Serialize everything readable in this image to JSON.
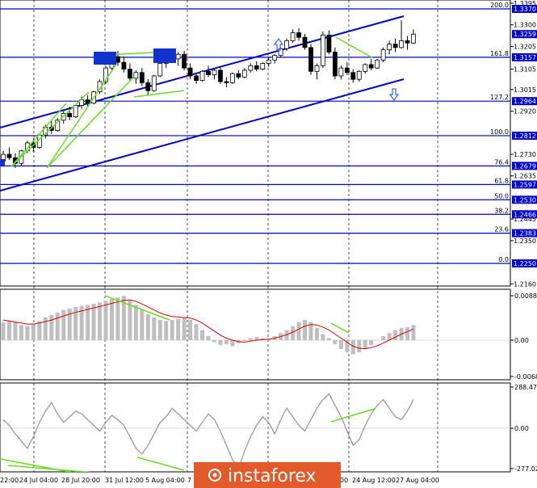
{
  "chart_data": {
    "type": "candlestick",
    "title": "",
    "x_labels": [
      "22:00",
      "24 Jul 04:00",
      "28 Jul 20:00",
      "31 Jul 12:00",
      "5 Aug 04:00",
      "7 A",
      "20:00",
      "24 Aug 12:00",
      "27 Aug 04:00"
    ],
    "y_ticks": [
      "1.3395",
      "1.3300",
      "1.3205",
      "1.3105",
      "1.3015",
      "1.2920",
      "1.2730",
      "1.2635",
      "1.2445",
      "1.2350",
      "1.2160"
    ],
    "price_markers": [
      {
        "fib": "200.0",
        "price": "1.3370"
      },
      {
        "fib": "",
        "price": "1.3259"
      },
      {
        "fib": "161.8",
        "price": "1.3157"
      },
      {
        "fib": "127.2",
        "price": "1.2964"
      },
      {
        "fib": "100.0",
        "price": "1.2812"
      },
      {
        "fib": "76.4",
        "price": "1.2679"
      },
      {
        "fib": "61.8",
        "price": "1.2597"
      },
      {
        "fib": "50.0",
        "price": "1.2530"
      },
      {
        "fib": "38.2",
        "price": "1.2466"
      },
      {
        "fib": "23.6",
        "price": "1.2383"
      },
      {
        "fib": "0.0",
        "price": "1.2250"
      }
    ],
    "candles": [
      [
        1.27,
        1.2745,
        1.269,
        1.273
      ],
      [
        1.273,
        1.276,
        1.2705,
        1.2715
      ],
      [
        1.2715,
        1.2735,
        1.267,
        1.269
      ],
      [
        1.269,
        1.275,
        1.268,
        1.2745
      ],
      [
        1.2745,
        1.279,
        1.2735,
        1.278
      ],
      [
        1.278,
        1.28,
        1.274,
        1.276
      ],
      [
        1.276,
        1.282,
        1.2755,
        1.2815
      ],
      [
        1.2815,
        1.286,
        1.28,
        1.285
      ],
      [
        1.285,
        1.288,
        1.282,
        1.2835
      ],
      [
        1.2835,
        1.289,
        1.283,
        1.288
      ],
      [
        1.288,
        1.292,
        1.2865,
        1.291
      ],
      [
        1.291,
        1.294,
        1.288,
        1.2895
      ],
      [
        1.2895,
        1.295,
        1.289,
        1.2945
      ],
      [
        1.2945,
        1.2985,
        1.293,
        1.297
      ],
      [
        1.297,
        1.299,
        1.294,
        1.2955
      ],
      [
        1.2955,
        1.301,
        1.295,
        1.3005
      ],
      [
        1.3005,
        1.306,
        1.2995,
        1.305
      ],
      [
        1.305,
        1.312,
        1.304,
        1.311
      ],
      [
        1.311,
        1.317,
        1.31,
        1.316
      ],
      [
        1.316,
        1.3185,
        1.312,
        1.3135
      ],
      [
        1.3135,
        1.316,
        1.309,
        1.3105
      ],
      [
        1.3105,
        1.313,
        1.305,
        1.3065
      ],
      [
        1.3065,
        1.31,
        1.304,
        1.309
      ],
      [
        1.309,
        1.311,
        1.303,
        1.3045
      ],
      [
        1.3045,
        1.306,
        1.299,
        1.301
      ],
      [
        1.301,
        1.308,
        1.3005,
        1.3075
      ],
      [
        1.3075,
        1.314,
        1.307,
        1.313
      ],
      [
        1.313,
        1.3175,
        1.311,
        1.3165
      ],
      [
        1.3165,
        1.319,
        1.314,
        1.315
      ],
      [
        1.315,
        1.318,
        1.312,
        1.317
      ],
      [
        1.317,
        1.3185,
        1.31,
        1.311
      ],
      [
        1.311,
        1.313,
        1.306,
        1.3075
      ],
      [
        1.3075,
        1.309,
        1.304,
        1.3055
      ],
      [
        1.3055,
        1.31,
        1.305,
        1.3095
      ],
      [
        1.3095,
        1.312,
        1.307,
        1.308
      ],
      [
        1.308,
        1.311,
        1.306,
        1.31
      ],
      [
        1.31,
        1.3115,
        1.304,
        1.305
      ],
      [
        1.305,
        1.307,
        1.3025,
        1.3045
      ],
      [
        1.3045,
        1.309,
        1.304,
        1.3085
      ],
      [
        1.3085,
        1.31,
        1.306,
        1.307
      ],
      [
        1.307,
        1.311,
        1.3065,
        1.31
      ],
      [
        1.31,
        1.313,
        1.309,
        1.312
      ],
      [
        1.312,
        1.314,
        1.3095,
        1.3105
      ],
      [
        1.3105,
        1.3135,
        1.31,
        1.313
      ],
      [
        1.313,
        1.316,
        1.3115,
        1.3145
      ],
      [
        1.3145,
        1.317,
        1.313,
        1.3165
      ],
      [
        1.3165,
        1.32,
        1.3155,
        1.3195
      ],
      [
        1.3195,
        1.324,
        1.3185,
        1.323
      ],
      [
        1.323,
        1.328,
        1.322,
        1.3265
      ],
      [
        1.3265,
        1.3285,
        1.323,
        1.3245
      ],
      [
        1.3245,
        1.326,
        1.319,
        1.32
      ],
      [
        1.32,
        1.3215,
        1.308,
        1.3095
      ],
      [
        1.3095,
        1.313,
        1.306,
        1.312
      ],
      [
        1.312,
        1.327,
        1.311,
        1.3255
      ],
      [
        1.3255,
        1.3275,
        1.317,
        1.318
      ],
      [
        1.318,
        1.32,
        1.306,
        1.3075
      ],
      [
        1.3075,
        1.312,
        1.306,
        1.311
      ],
      [
        1.311,
        1.3135,
        1.308,
        1.309
      ],
      [
        1.309,
        1.3105,
        1.3045,
        1.306
      ],
      [
        1.306,
        1.31,
        1.305,
        1.3095
      ],
      [
        1.3095,
        1.313,
        1.3085,
        1.3125
      ],
      [
        1.3125,
        1.315,
        1.31,
        1.311
      ],
      [
        1.311,
        1.315,
        1.3105,
        1.3145
      ],
      [
        1.3145,
        1.32,
        1.3135,
        1.319
      ],
      [
        1.319,
        1.323,
        1.317,
        1.3215
      ],
      [
        1.3215,
        1.324,
        1.318,
        1.32
      ],
      [
        1.32,
        1.332,
        1.3195,
        1.323
      ],
      [
        1.323,
        1.325,
        1.319,
        1.322
      ],
      [
        1.322,
        1.328,
        1.3215,
        1.3259
      ]
    ],
    "channel_price_label": "1.3259",
    "macd": {
      "axis_labels": [
        "0.00883",
        "0.00",
        "-0.00683"
      ],
      "histogram": [
        0.0035,
        0.0038,
        0.0036,
        0.003,
        0.0028,
        0.0032,
        0.0038,
        0.0045,
        0.005,
        0.0055,
        0.006,
        0.0063,
        0.0066,
        0.0068,
        0.007,
        0.0072,
        0.0075,
        0.0078,
        0.0082,
        0.0085,
        0.0088,
        0.008,
        0.007,
        0.006,
        0.0052,
        0.0045,
        0.004,
        0.0038,
        0.004,
        0.0042,
        0.0044,
        0.004,
        0.0032,
        0.002,
        0.0008,
        -0.0004,
        -0.001,
        -0.0008,
        -0.0012,
        -0.0006,
        -0.0002,
        0.0004,
        0.0006,
        0.0004,
        0.0002,
        0.0008,
        0.0014,
        0.002,
        0.0028,
        0.0036,
        0.004,
        0.0036,
        0.0024,
        0.0012,
        0.0004,
        -0.0008,
        -0.0018,
        -0.0024,
        -0.0028,
        -0.0024,
        -0.0018,
        -0.001,
        0.0,
        0.0008,
        0.0014,
        0.002,
        0.0024,
        0.0026,
        0.003
      ],
      "signal": [
        0.004,
        0.0038,
        0.0036,
        0.0034,
        0.0032,
        0.0032,
        0.0034,
        0.0037,
        0.004,
        0.0044,
        0.0048,
        0.0052,
        0.0055,
        0.0058,
        0.0061,
        0.0064,
        0.0067,
        0.007,
        0.0073,
        0.0076,
        0.0079,
        0.008,
        0.0077,
        0.0072,
        0.0066,
        0.006,
        0.0054,
        0.005,
        0.0047,
        0.0046,
        0.0045,
        0.0044,
        0.004,
        0.0034,
        0.0026,
        0.0018,
        0.001,
        0.0004,
        0.0,
        -0.0003,
        -0.0004,
        -0.0002,
        0.0,
        0.0001,
        0.0002,
        0.0004,
        0.0007,
        0.0011,
        0.0016,
        0.0022,
        0.0028,
        0.0031,
        0.003,
        0.0026,
        0.002,
        0.0012,
        0.0004,
        -0.0004,
        -0.0012,
        -0.0016,
        -0.0017,
        -0.0015,
        -0.0011,
        -0.0006,
        0.0,
        0.0006,
        0.0012,
        0.0017,
        0.0022
      ]
    },
    "cci": {
      "axis_labels": [
        "288.4729",
        "0.00",
        "-277.0273"
      ],
      "values": [
        60,
        20,
        -40,
        -90,
        -140,
        -60,
        40,
        120,
        180,
        100,
        40,
        80,
        120,
        100,
        60,
        20,
        -20,
        40,
        90,
        60,
        20,
        -60,
        -140,
        -180,
        -120,
        -40,
        40,
        80,
        140,
        100,
        60,
        20,
        -20,
        40,
        100,
        60,
        -20,
        -120,
        -220,
        -277,
        -160,
        -60,
        20,
        80,
        40,
        -40,
        60,
        140,
        80,
        20,
        -20,
        60,
        140,
        200,
        240,
        160,
        80,
        -20,
        -120,
        -80,
        20,
        100,
        160,
        200,
        140,
        80,
        60,
        120,
        200
      ]
    }
  },
  "watermark": "instaforex"
}
